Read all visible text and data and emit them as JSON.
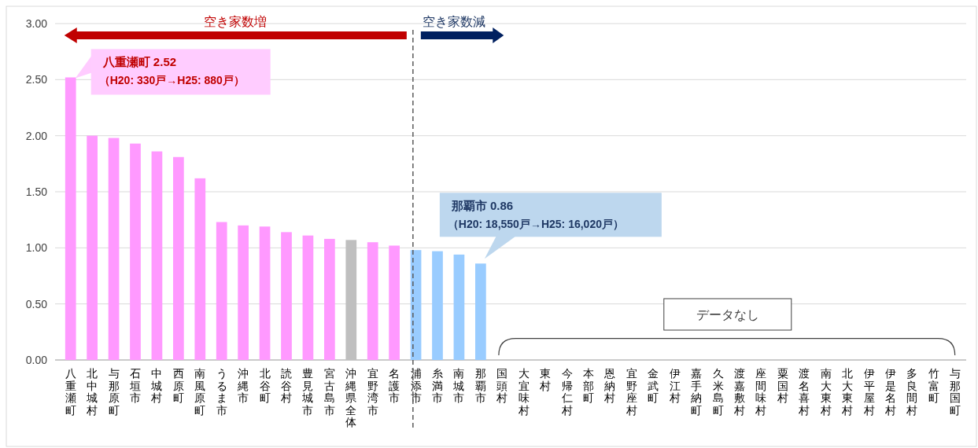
{
  "chart_data": {
    "type": "bar",
    "categories": [
      "八重瀬町",
      "北中城村",
      "与那原町",
      "石垣市",
      "中城村",
      "西原町",
      "南風原町",
      "うるま市",
      "沖縄市",
      "北谷町",
      "読谷村",
      "豊見城市",
      "宮古島市",
      "沖縄県全体",
      "宜野湾市",
      "名護市",
      "浦添市",
      "糸満市",
      "南城市",
      "那覇市",
      "国頭村",
      "大宜味村",
      "東村",
      "今帰仁村",
      "本部町",
      "恩納村",
      "宜野座村",
      "金武町",
      "伊江村",
      "嘉手納町",
      "久米島町",
      "渡嘉敷村",
      "座間味村",
      "粟国村",
      "渡名喜村",
      "南大東村",
      "北大東村",
      "伊平屋村",
      "伊是名村",
      "多良間村",
      "竹富町",
      "与那国町"
    ],
    "values": [
      2.52,
      2.0,
      1.98,
      1.93,
      1.86,
      1.81,
      1.62,
      1.23,
      1.2,
      1.19,
      1.14,
      1.11,
      1.08,
      1.07,
      1.05,
      1.02,
      0.98,
      0.97,
      0.94,
      0.86,
      null,
      null,
      null,
      null,
      null,
      null,
      null,
      null,
      null,
      null,
      null,
      null,
      null,
      null,
      null,
      null,
      null,
      null,
      null,
      null,
      null,
      null
    ],
    "colors": [
      "#ff99ff",
      "#ff99ff",
      "#ff99ff",
      "#ff99ff",
      "#ff99ff",
      "#ff99ff",
      "#ff99ff",
      "#ff99ff",
      "#ff99ff",
      "#ff99ff",
      "#ff99ff",
      "#ff99ff",
      "#ff99ff",
      "#bfbfbf",
      "#ff99ff",
      "#ff99ff",
      "#99ccff",
      "#99ccff",
      "#99ccff",
      "#99ccff",
      null,
      null,
      null,
      null,
      null,
      null,
      null,
      null,
      null,
      null,
      null,
      null,
      null,
      null,
      null,
      null,
      null,
      null,
      null,
      null,
      null,
      null
    ],
    "ylim": [
      0,
      3
    ],
    "yticks": [
      {
        "value": 0,
        "label": "0.00"
      },
      {
        "value": 0.5,
        "label": "0.50"
      },
      {
        "value": 1,
        "label": "1.00"
      },
      {
        "value": 1.5,
        "label": "1.50"
      },
      {
        "value": 2,
        "label": "2.00"
      },
      {
        "value": 2.5,
        "label": "2.50"
      },
      {
        "value": 3,
        "label": "3.00"
      }
    ],
    "grid": "y",
    "ref_lines": [
      {
        "axis": "x",
        "value": "浦添市",
        "color": "#595959",
        "line_style": "dashed"
      }
    ],
    "annotations": [
      "空き家数増",
      "空き家数減",
      {
        "text": "八重瀬町  2.52\n（H20: 330戸→H25: 880戸）",
        "x": "八重瀬町",
        "y": 2.52
      },
      {
        "text": "那覇市  0.86\n（H20: 18,550戸→H25: 16,020戸）",
        "x": "那覇市",
        "y": 0.86
      },
      "データなし"
    ]
  }
}
